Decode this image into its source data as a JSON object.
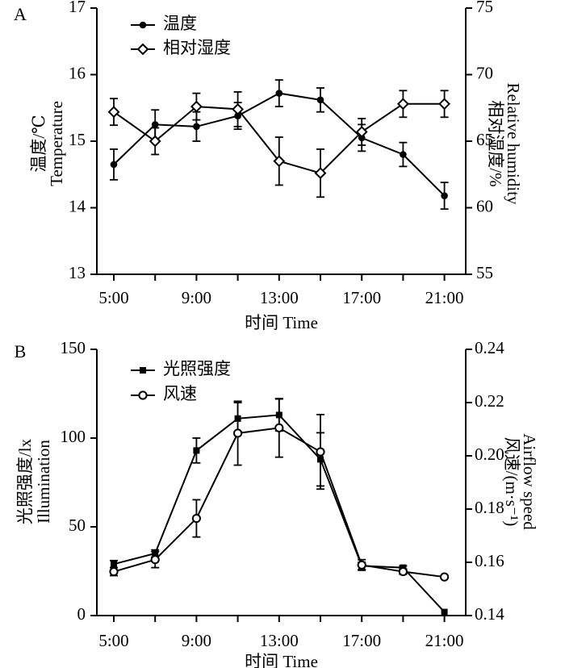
{
  "chart_data": [
    {
      "panel": "A",
      "type": "line",
      "x": [
        "5:00",
        "7:00",
        "9:00",
        "11:00",
        "13:00",
        "15:00",
        "17:00",
        "19:00",
        "21:00"
      ],
      "xticks": [
        "5:00",
        "9:00",
        "13:00",
        "17:00",
        "21:00"
      ],
      "xlabel": "时间 Time",
      "ylabel_left": [
        "温度/℃",
        "Temperature"
      ],
      "ylabel_right": [
        "相对湿度/%",
        "Relative humidity"
      ],
      "ylim_left": [
        13,
        17
      ],
      "yticks_left": [
        "13",
        "14",
        "15",
        "16",
        "17"
      ],
      "ylim_right": [
        55,
        75
      ],
      "yticks_right": [
        "55",
        "60",
        "65",
        "70",
        "75"
      ],
      "series": [
        {
          "name": "温度",
          "axis": "left",
          "marker": "filled-circle",
          "values": [
            14.65,
            15.25,
            15.22,
            15.38,
            15.72,
            15.62,
            15.05,
            14.8,
            14.18
          ],
          "errors": [
            0.23,
            0.22,
            0.22,
            0.2,
            0.2,
            0.18,
            0.2,
            0.18,
            0.2
          ]
        },
        {
          "name": "相对湿度",
          "axis": "right",
          "marker": "open-diamond",
          "values": [
            67.2,
            65.0,
            67.6,
            67.4,
            63.5,
            62.6,
            65.7,
            67.8,
            67.8
          ],
          "errors": [
            1.0,
            1.0,
            1.0,
            1.3,
            1.8,
            1.8,
            1.0,
            1.0,
            1.0
          ]
        }
      ]
    },
    {
      "panel": "B",
      "type": "line",
      "x": [
        "5:00",
        "7:00",
        "9:00",
        "11:00",
        "13:00",
        "15:00",
        "17:00",
        "19:00",
        "21:00"
      ],
      "xticks": [
        "5:00",
        "9:00",
        "13:00",
        "17:00",
        "21:00"
      ],
      "xlabel": "时间 Time",
      "ylabel_left": [
        "光照强度/lx",
        "Illumination"
      ],
      "ylabel_right": [
        "风速/(m·s⁻¹)",
        "Airflow speed"
      ],
      "ylim_left": [
        0,
        150
      ],
      "yticks_left": [
        "0",
        "50",
        "100",
        "150"
      ],
      "ylim_right": [
        0.14,
        0.24
      ],
      "yticks_right": [
        "0.14",
        "0.16",
        "0.18",
        "0.20",
        "0.22",
        "0.24"
      ],
      "series": [
        {
          "name": "光照强度",
          "axis": "left",
          "marker": "filled-square",
          "values": [
            29,
            35,
            93,
            111,
            113,
            88,
            28,
            27,
            2
          ],
          "errors": [
            2,
            2,
            7,
            9,
            9,
            15,
            2,
            1,
            0
          ]
        },
        {
          "name": "风速",
          "axis": "right",
          "marker": "open-circle",
          "values": [
            0.1565,
            0.161,
            0.1765,
            0.2085,
            0.2105,
            0.2015,
            0.159,
            0.1565,
            0.1545
          ],
          "errors": [
            0.0015,
            0.003,
            0.007,
            0.012,
            0.011,
            0.014,
            0.002,
            0.001,
            0.0005
          ]
        }
      ]
    }
  ]
}
